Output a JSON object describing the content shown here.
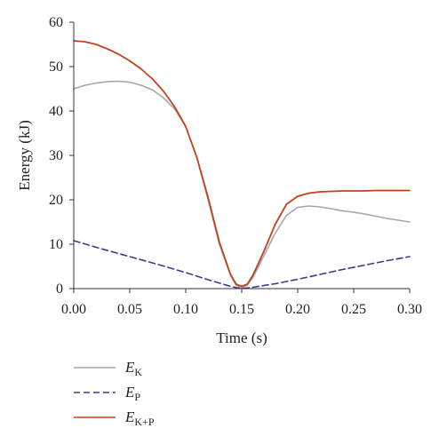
{
  "chart_data": {
    "type": "line",
    "xlabel": "Time (s)",
    "ylabel": "Energy (kJ)",
    "xlim": [
      0,
      0.3
    ],
    "ylim": [
      0,
      60
    ],
    "x_ticks": [
      "0.00",
      "0.05",
      "0.10",
      "0.15",
      "0.20",
      "0.25",
      "0.30"
    ],
    "y_ticks": [
      "0",
      "10",
      "20",
      "30",
      "40",
      "50",
      "60"
    ],
    "grid": false,
    "legend_position": "bottom-left",
    "series": [
      {
        "name": "E",
        "name_sub": "K",
        "color": "#a6a6a6",
        "style": "solid",
        "x": [
          0,
          0.01,
          0.02,
          0.03,
          0.04,
          0.05,
          0.06,
          0.07,
          0.08,
          0.09,
          0.1,
          0.11,
          0.12,
          0.13,
          0.14,
          0.145,
          0.15,
          0.155,
          0.16,
          0.17,
          0.18,
          0.19,
          0.2,
          0.21,
          0.22,
          0.23,
          0.24,
          0.25,
          0.26,
          0.27,
          0.28,
          0.29,
          0.3
        ],
        "y": [
          45,
          45.8,
          46.3,
          46.6,
          46.7,
          46.5,
          45.8,
          44.8,
          43,
          40.5,
          36.5,
          29.5,
          20,
          10,
          3,
          0.8,
          0.2,
          0.8,
          2.5,
          7.5,
          12.5,
          16.5,
          18.3,
          18.6,
          18.4,
          18,
          17.5,
          17.2,
          16.8,
          16.3,
          15.8,
          15.4,
          15
        ]
      },
      {
        "name": "E",
        "name_sub": "P",
        "color": "#3b3b8f",
        "style": "dashed",
        "x": [
          0,
          0.02,
          0.04,
          0.06,
          0.08,
          0.1,
          0.12,
          0.14,
          0.15,
          0.16,
          0.18,
          0.2,
          0.22,
          0.24,
          0.26,
          0.28,
          0.3
        ],
        "y": [
          10.8,
          9.3,
          7.9,
          6.5,
          5.1,
          3.6,
          2,
          0.5,
          0,
          0.3,
          1.1,
          2.1,
          3.2,
          4.3,
          5.3,
          6.3,
          7.2
        ]
      },
      {
        "name": "E",
        "name_sub": "K+P",
        "color": "#c0441b",
        "style": "solid",
        "x": [
          0,
          0.01,
          0.02,
          0.03,
          0.04,
          0.05,
          0.06,
          0.07,
          0.08,
          0.09,
          0.1,
          0.11,
          0.12,
          0.13,
          0.14,
          0.145,
          0.15,
          0.155,
          0.16,
          0.17,
          0.18,
          0.19,
          0.2,
          0.21,
          0.22,
          0.23,
          0.24,
          0.25,
          0.26,
          0.27,
          0.28,
          0.29,
          0.3
        ],
        "y": [
          55.8,
          55.6,
          55,
          54,
          52.8,
          51.3,
          49.5,
          47.3,
          44.5,
          41,
          36.5,
          29.5,
          20.5,
          10.5,
          3.2,
          1,
          0.5,
          1,
          3,
          8.5,
          14.5,
          19,
          20.8,
          21.5,
          21.8,
          21.9,
          22,
          22,
          22,
          22.1,
          22.1,
          22.1,
          22.1
        ]
      }
    ]
  }
}
